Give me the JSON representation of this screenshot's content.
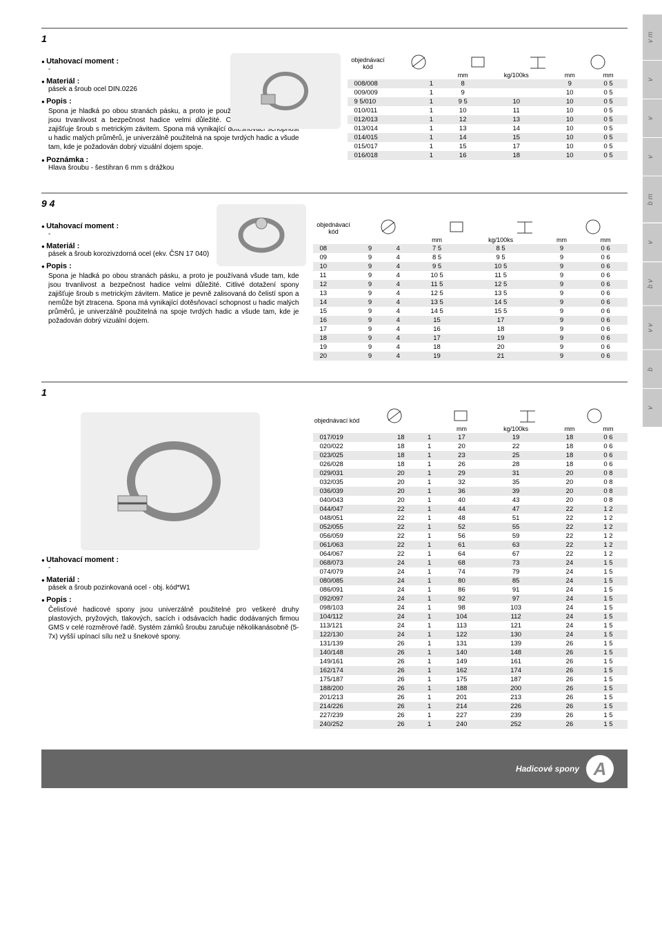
{
  "sideTabs": [
    "v m",
    "v",
    "v",
    "v",
    "b m",
    "v",
    "b v",
    "v v",
    "b",
    "v"
  ],
  "section1": {
    "title": "1",
    "moment_label": "Utahovací moment :",
    "moment_val": "-",
    "material_label": "Materiál :",
    "material_val": "pásek a šroub ocel DIN.0226",
    "popis_label": "Popis :",
    "popis_text": "Spona je hladká po obou stranách pásku, a proto je používaná všude tam, kde jsou trvanlivost a bezpečnost hadice velmi důležité. Citlivé dotažení spony zajišťuje šroub s metrickým závitem. Spona má vynikající dotěsňovací schopnost u hadic malých průměrů, je univerzálně použitelná na spoje tvrdých hadic a všude tam, kde je požadován dobrý vizuální dojem spoje.",
    "note_label": "Poznámka :",
    "note_text": "Hlava šroubu - šestihran 6 mm s drážkou",
    "order_label": "objednávací kód",
    "units": [
      "mm",
      "kg/100ks",
      "mm",
      "mm"
    ],
    "rows": [
      [
        "008/008",
        "1",
        "8",
        "",
        "9",
        "0 5"
      ],
      [
        "009/009",
        "1",
        "9",
        "",
        "10",
        "0 5"
      ],
      [
        "9 5/010",
        "1",
        "9 5",
        "10",
        "10",
        "0 5"
      ],
      [
        "010/011",
        "1",
        "10",
        "11",
        "10",
        "0 5"
      ],
      [
        "012/013",
        "1",
        "12",
        "13",
        "10",
        "0 5"
      ],
      [
        "013/014",
        "1",
        "13",
        "14",
        "10",
        "0 5"
      ],
      [
        "014/015",
        "1",
        "14",
        "15",
        "10",
        "0 5"
      ],
      [
        "015/017",
        "1",
        "15",
        "17",
        "10",
        "0 5"
      ],
      [
        "016/018",
        "1",
        "16",
        "18",
        "10",
        "0 5"
      ]
    ]
  },
  "section2": {
    "title": "9  4",
    "moment_label": "Utahovací moment :",
    "moment_val": "-",
    "material_label": "Materiál :",
    "material_val": "pásek a šroub korozivzdorná ocel (ekv. ČSN 17 040)",
    "popis_label": "Popis :",
    "popis_text": "Spona je hladká po obou stranách pásku, a proto je používaná všude tam, kde jsou trvanlivost a bezpečnost hadice velmi důležité. Citlivé dotažení spony zajišťuje šroub s metrickým závitem. Matice je pevně zalisovaná do čelistí spon a nemůže být ztracena. Spona má vynikající dotěsňovací schopnost u hadic malých průměrů, je univerzálně použitelná na spoje tvrdých hadic a všude tam, kde je požadován dobrý vizuální dojem.",
    "order_label": "objednávací kód",
    "units": [
      "mm",
      "kg/100ks",
      "mm",
      "mm"
    ],
    "rows": [
      [
        "08",
        "9",
        "4",
        "7 5",
        "8 5",
        "9",
        "0 6"
      ],
      [
        "09",
        "9",
        "4",
        "8 5",
        "9 5",
        "9",
        "0 6"
      ],
      [
        "10",
        "9",
        "4",
        "9 5",
        "10 5",
        "9",
        "0 6"
      ],
      [
        "11",
        "9",
        "4",
        "10 5",
        "11 5",
        "9",
        "0 6"
      ],
      [
        "12",
        "9",
        "4",
        "11 5",
        "12 5",
        "9",
        "0 6"
      ],
      [
        "13",
        "9",
        "4",
        "12 5",
        "13 5",
        "9",
        "0 6"
      ],
      [
        "14",
        "9",
        "4",
        "13 5",
        "14 5",
        "9",
        "0 6"
      ],
      [
        "15",
        "9",
        "4",
        "14 5",
        "15 5",
        "9",
        "0 6"
      ],
      [
        "16",
        "9",
        "4",
        "15",
        "17",
        "9",
        "0 6"
      ],
      [
        "17",
        "9",
        "4",
        "16",
        "18",
        "9",
        "0 6"
      ],
      [
        "18",
        "9",
        "4",
        "17",
        "19",
        "9",
        "0 6"
      ],
      [
        "19",
        "9",
        "4",
        "18",
        "20",
        "9",
        "0 6"
      ],
      [
        "20",
        "9",
        "4",
        "19",
        "21",
        "9",
        "0 6"
      ]
    ]
  },
  "section3": {
    "title": "1",
    "moment_label": "Utahovací moment :",
    "moment_val": "-",
    "material_label": "Materiál :",
    "material_val": "pásek a šroub pozinkovaná ocel - obj. kód*W1",
    "popis_label": "Popis :",
    "popis_text": "Čelisťové hadicové spony jsou univerzálně použitelné pro veškeré druhy plastových, pryžových, tlakových, sacích i odsávacích hadic dodávaných firmou GMS v celé rozměrové řadě. Systém zámků šroubu zaručuje několikanásobně (5-7x) vyšší upínací sílu než u šnekové spony.",
    "order_label": "objednávací kód",
    "units": [
      "mm",
      "kg/100ks",
      "mm",
      "mm"
    ],
    "rows": [
      [
        "017/019",
        "18",
        "1",
        "17",
        "19",
        "18",
        "0 6"
      ],
      [
        "020/022",
        "18",
        "1",
        "20",
        "22",
        "18",
        "0 6"
      ],
      [
        "023/025",
        "18",
        "1",
        "23",
        "25",
        "18",
        "0 6"
      ],
      [
        "026/028",
        "18",
        "1",
        "26",
        "28",
        "18",
        "0 6"
      ],
      [
        "029/031",
        "20",
        "1",
        "29",
        "31",
        "20",
        "0 8"
      ],
      [
        "032/035",
        "20",
        "1",
        "32",
        "35",
        "20",
        "0 8"
      ],
      [
        "036/039",
        "20",
        "1",
        "36",
        "39",
        "20",
        "0 8"
      ],
      [
        "040/043",
        "20",
        "1",
        "40",
        "43",
        "20",
        "0 8"
      ],
      [
        "044/047",
        "22",
        "1",
        "44",
        "47",
        "22",
        "1 2"
      ],
      [
        "048/051",
        "22",
        "1",
        "48",
        "51",
        "22",
        "1 2"
      ],
      [
        "052/055",
        "22",
        "1",
        "52",
        "55",
        "22",
        "1 2"
      ],
      [
        "056/059",
        "22",
        "1",
        "56",
        "59",
        "22",
        "1 2"
      ],
      [
        "061/063",
        "22",
        "1",
        "61",
        "63",
        "22",
        "1 2"
      ],
      [
        "064/067",
        "22",
        "1",
        "64",
        "67",
        "22",
        "1 2"
      ],
      [
        "068/073",
        "24",
        "1",
        "68",
        "73",
        "24",
        "1 5"
      ],
      [
        "074/079",
        "24",
        "1",
        "74",
        "79",
        "24",
        "1 5"
      ],
      [
        "080/085",
        "24",
        "1",
        "80",
        "85",
        "24",
        "1 5"
      ],
      [
        "086/091",
        "24",
        "1",
        "86",
        "91",
        "24",
        "1 5"
      ],
      [
        "092/097",
        "24",
        "1",
        "92",
        "97",
        "24",
        "1 5"
      ],
      [
        "098/103",
        "24",
        "1",
        "98",
        "103",
        "24",
        "1 5"
      ],
      [
        "104/112",
        "24",
        "1",
        "104",
        "112",
        "24",
        "1 5"
      ],
      [
        "113/121",
        "24",
        "1",
        "113",
        "121",
        "24",
        "1 5"
      ],
      [
        "122/130",
        "24",
        "1",
        "122",
        "130",
        "24",
        "1 5"
      ],
      [
        "131/139",
        "26",
        "1",
        "131",
        "139",
        "26",
        "1 5"
      ],
      [
        "140/148",
        "26",
        "1",
        "140",
        "148",
        "26",
        "1 5"
      ],
      [
        "149/161",
        "26",
        "1",
        "149",
        "161",
        "26",
        "1 5"
      ],
      [
        "162/174",
        "26",
        "1",
        "162",
        "174",
        "26",
        "1 5"
      ],
      [
        "175/187",
        "26",
        "1",
        "175",
        "187",
        "26",
        "1 5"
      ],
      [
        "188/200",
        "26",
        "1",
        "188",
        "200",
        "26",
        "1 5"
      ],
      [
        "201/213",
        "26",
        "1",
        "201",
        "213",
        "26",
        "1 5"
      ],
      [
        "214/226",
        "26",
        "1",
        "214",
        "226",
        "26",
        "1 5"
      ],
      [
        "227/239",
        "26",
        "1",
        "227",
        "239",
        "26",
        "1 5"
      ],
      [
        "240/252",
        "26",
        "1",
        "240",
        "252",
        "26",
        "1 5"
      ]
    ]
  },
  "footer": {
    "label": "Hadicové spony",
    "letter": "A"
  }
}
